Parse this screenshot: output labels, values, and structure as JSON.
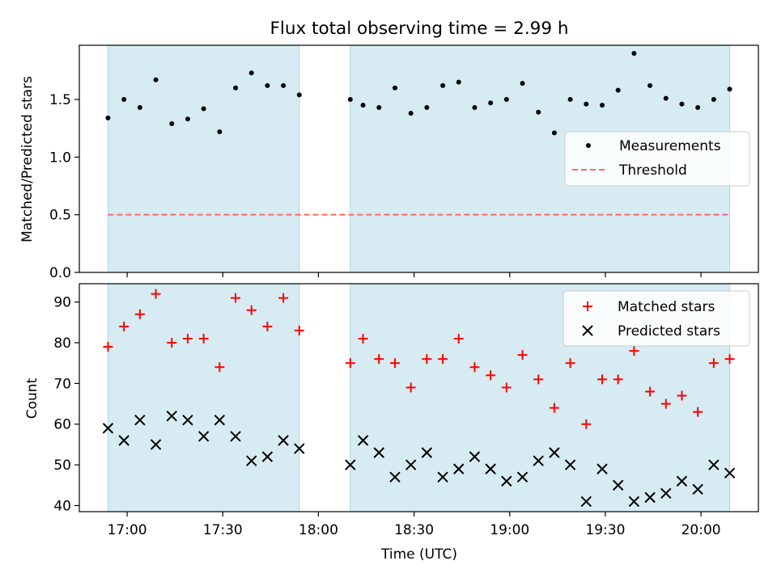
{
  "chart_data": [
    {
      "type": "scatter",
      "title": "Flux total observing time = 2.99 h",
      "xlabel": "",
      "ylabel": "Matched/Predicted stars",
      "ylim": [
        0.0,
        1.97
      ],
      "yticks": [
        0.0,
        0.5,
        1.0,
        1.5
      ],
      "ytick_labels": [
        "0.0",
        "0.5",
        "1.0",
        "1.5"
      ],
      "x_unit": "time UTC (hh:mm)",
      "xlim": [
        "16:45",
        "20:18"
      ],
      "shaded_intervals": [
        [
          "16:54",
          "17:54"
        ],
        [
          "18:10",
          "20:09"
        ]
      ],
      "legend": {
        "placement": "center-right",
        "entries": [
          "Measurements",
          "Threshold"
        ]
      },
      "series": [
        {
          "name": "Measurements",
          "marker": "dot",
          "color": "#000000",
          "x": [
            "16:54",
            "16:59",
            "17:04",
            "17:09",
            "17:14",
            "17:19",
            "17:24",
            "17:29",
            "17:34",
            "17:39",
            "17:44",
            "17:49",
            "17:54",
            "18:10",
            "18:14",
            "18:19",
            "18:24",
            "18:29",
            "18:34",
            "18:39",
            "18:44",
            "18:49",
            "18:54",
            "18:59",
            "19:04",
            "19:09",
            "19:14",
            "19:19",
            "19:24",
            "19:29",
            "19:34",
            "19:39",
            "19:44",
            "19:49",
            "19:54",
            "19:59",
            "20:04",
            "20:09"
          ],
          "y": [
            1.34,
            1.5,
            1.43,
            1.67,
            1.29,
            1.33,
            1.42,
            1.22,
            1.6,
            1.73,
            1.62,
            1.62,
            1.54,
            1.5,
            1.45,
            1.43,
            1.6,
            1.38,
            1.43,
            1.62,
            1.65,
            1.43,
            1.47,
            1.5,
            1.64,
            1.39,
            1.21,
            1.5,
            1.46,
            1.45,
            1.58,
            1.9,
            1.62,
            1.51,
            1.46,
            1.43,
            1.5,
            1.59
          ]
        },
        {
          "name": "Threshold",
          "style": "dashed",
          "color": "#ff6666",
          "x": [
            "16:54",
            "20:09"
          ],
          "y": [
            0.5,
            0.5
          ]
        }
      ]
    },
    {
      "type": "scatter",
      "xlabel": "Time (UTC)",
      "ylabel": "Count",
      "ylim": [
        38.5,
        94.5
      ],
      "yticks": [
        40,
        50,
        60,
        70,
        80,
        90
      ],
      "ytick_labels": [
        "40",
        "50",
        "60",
        "70",
        "80",
        "90"
      ],
      "xlim": [
        "16:45",
        "20:18"
      ],
      "xticks": [
        "17:00",
        "17:30",
        "18:00",
        "18:30",
        "19:00",
        "19:30",
        "20:00"
      ],
      "xtick_labels": [
        "17:00",
        "17:30",
        "18:00",
        "18:30",
        "19:00",
        "19:30",
        "20:00"
      ],
      "shaded_intervals": [
        [
          "16:54",
          "17:54"
        ],
        [
          "18:10",
          "20:09"
        ]
      ],
      "legend": {
        "placement": "top-right",
        "entries": [
          "Matched stars",
          "Predicted stars"
        ]
      },
      "series": [
        {
          "name": "Matched stars",
          "marker": "plus",
          "color": "#ff0000",
          "x": [
            "16:54",
            "16:59",
            "17:04",
            "17:09",
            "17:14",
            "17:19",
            "17:24",
            "17:29",
            "17:34",
            "17:39",
            "17:44",
            "17:49",
            "17:54",
            "18:10",
            "18:14",
            "18:19",
            "18:24",
            "18:29",
            "18:34",
            "18:39",
            "18:44",
            "18:49",
            "18:54",
            "18:59",
            "19:04",
            "19:09",
            "19:14",
            "19:19",
            "19:24",
            "19:29",
            "19:34",
            "19:39",
            "19:44",
            "19:49",
            "19:54",
            "19:59",
            "20:04",
            "20:09"
          ],
          "y": [
            79,
            84,
            87,
            92,
            80,
            81,
            81,
            74,
            91,
            88,
            84,
            91,
            83,
            75,
            81,
            76,
            75,
            69,
            76,
            76,
            81,
            74,
            72,
            69,
            77,
            71,
            64,
            75,
            60,
            71,
            71,
            78,
            68,
            65,
            67,
            63,
            75,
            76
          ]
        },
        {
          "name": "Predicted stars",
          "marker": "x",
          "color": "#000000",
          "x": [
            "16:54",
            "16:59",
            "17:04",
            "17:09",
            "17:14",
            "17:19",
            "17:24",
            "17:29",
            "17:34",
            "17:39",
            "17:44",
            "17:49",
            "17:54",
            "18:10",
            "18:14",
            "18:19",
            "18:24",
            "18:29",
            "18:34",
            "18:39",
            "18:44",
            "18:49",
            "18:54",
            "18:59",
            "19:04",
            "19:09",
            "19:14",
            "19:19",
            "19:24",
            "19:29",
            "19:34",
            "19:39",
            "19:44",
            "19:49",
            "19:54",
            "19:59",
            "20:04",
            "20:09"
          ],
          "y": [
            59,
            56,
            61,
            55,
            62,
            61,
            57,
            61,
            57,
            51,
            52,
            56,
            54,
            50,
            56,
            53,
            47,
            50,
            53,
            47,
            49,
            52,
            49,
            46,
            47,
            51,
            53,
            50,
            41,
            49,
            45,
            41,
            42,
            43,
            46,
            44,
            50,
            48
          ]
        }
      ]
    }
  ]
}
